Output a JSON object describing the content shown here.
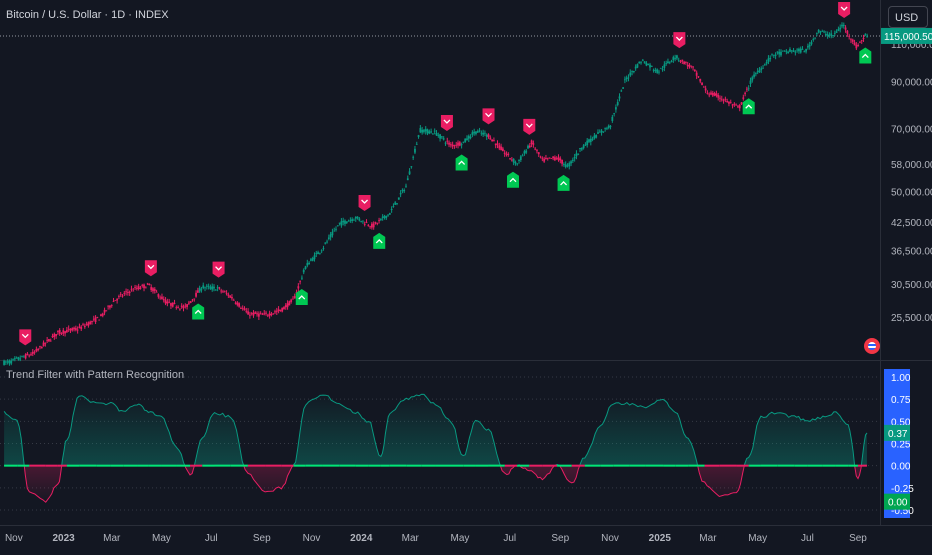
{
  "header": {
    "symbol_title": "Bitcoin / U.S. Dollar · 1D · INDEX",
    "currency_button": "USD",
    "current_price": "115,000.50"
  },
  "indicator": {
    "title": "Trend Filter with Pattern Recognition",
    "current_value": "0.37",
    "threshold_value": "0.00"
  },
  "colors": {
    "background": "#131722",
    "bull": "#089981",
    "bear": "#e91e63",
    "signal_up": "#00c853",
    "signal_down": "#e91e63",
    "threshold_line": "#00e676",
    "scale_badge": "#2962ff"
  },
  "icons": [
    "flag-icon"
  ],
  "chart_data": [
    {
      "type": "line",
      "title": "Bitcoin / U.S. Dollar · 1D · INDEX",
      "y_scale": "log",
      "price_axis_ticks": [
        "115,000.50",
        "110,000.00",
        "90,000.00",
        "70,000.00",
        "58,000.00",
        "50,000.00",
        "42,500.00",
        "36,500.00",
        "30,500.00",
        "25,500.00"
      ],
      "time_axis_ticks": [
        "Nov",
        "2023",
        "Mar",
        "May",
        "Jul",
        "Sep",
        "Nov",
        "2024",
        "Mar",
        "May",
        "Jul",
        "Sep",
        "Nov",
        "2025",
        "Mar",
        "May",
        "Jul",
        "Sep"
      ],
      "last_price": 115000.5,
      "series": [
        {
          "x": [
            "2022-10-25",
            "2022-11-25",
            "2022-12-25",
            "2023-01-20",
            "2023-02-15",
            "2023-03-05",
            "2023-03-25",
            "2023-04-15",
            "2023-05-08",
            "2023-05-30",
            "2023-06-20",
            "2023-07-10",
            "2023-07-25",
            "2023-08-15",
            "2023-09-05",
            "2023-09-25",
            "2023-10-10",
            "2023-10-25",
            "2023-11-15",
            "2023-12-05",
            "2023-12-25",
            "2024-01-15",
            "2024-02-05",
            "2024-02-25",
            "2024-03-13",
            "2024-04-01",
            "2024-04-20",
            "2024-05-05",
            "2024-05-20",
            "2024-06-05",
            "2024-06-25",
            "2024-07-10",
            "2024-07-28",
            "2024-08-10",
            "2024-08-28",
            "2024-09-10",
            "2024-09-28",
            "2024-10-15",
            "2024-11-01",
            "2024-11-20",
            "2024-12-10",
            "2024-12-30",
            "2025-01-20",
            "2025-02-10",
            "2025-02-28",
            "2025-03-15",
            "2025-04-08",
            "2025-04-25",
            "2025-05-20",
            "2025-06-10",
            "2025-06-30",
            "2025-07-14",
            "2025-08-01",
            "2025-08-14",
            "2025-08-30",
            "2025-09-10"
          ],
          "y": [
            20000,
            21000,
            23500,
            24000,
            25500,
            28000,
            29500,
            30300,
            27500,
            26800,
            30000,
            29700,
            28500,
            26000,
            25800,
            26500,
            28000,
            33500,
            37000,
            42000,
            43500,
            41500,
            44500,
            51500,
            69500,
            68500,
            64000,
            65000,
            69000,
            67500,
            61500,
            58000,
            65000,
            59000,
            60000,
            57000,
            63500,
            67500,
            71000,
            91000,
            101000,
            95000,
            103000,
            97000,
            85000,
            83000,
            78000,
            92000,
            104000,
            106000,
            106500,
            118000,
            115000,
            122000,
            108500,
            115000
          ]
        }
      ],
      "signals": [
        {
          "type": "sell",
          "date": "2022-11-15"
        },
        {
          "type": "sell",
          "date": "2023-04-18"
        },
        {
          "type": "buy",
          "date": "2023-06-15"
        },
        {
          "type": "sell",
          "date": "2023-07-10"
        },
        {
          "type": "buy",
          "date": "2023-10-20"
        },
        {
          "type": "sell",
          "date": "2024-01-05"
        },
        {
          "type": "buy",
          "date": "2024-01-23"
        },
        {
          "type": "sell",
          "date": "2024-04-15"
        },
        {
          "type": "buy",
          "date": "2024-05-03"
        },
        {
          "type": "sell",
          "date": "2024-06-05"
        },
        {
          "type": "buy",
          "date": "2024-07-05"
        },
        {
          "type": "sell",
          "date": "2024-07-25"
        },
        {
          "type": "buy",
          "date": "2024-09-05"
        },
        {
          "type": "sell",
          "date": "2025-01-25"
        },
        {
          "type": "buy",
          "date": "2025-04-20"
        },
        {
          "type": "sell",
          "date": "2025-08-15"
        },
        {
          "type": "buy",
          "date": "2025-09-10"
        }
      ]
    },
    {
      "type": "area",
      "title": "Trend Filter with Pattern Recognition",
      "ylim": [
        -0.6,
        1.05
      ],
      "y_axis_ticks": [
        "1.00",
        "0.75",
        "0.50",
        "0.25",
        "0.00",
        "-0.25",
        "-0.50"
      ],
      "threshold": 0.0,
      "last_value": 0.37,
      "series": [
        {
          "x": [
            "2022-10-20",
            "2022-11-05",
            "2022-11-20",
            "2022-12-10",
            "2022-12-25",
            "2023-01-05",
            "2023-01-20",
            "2023-02-10",
            "2023-02-28",
            "2023-03-15",
            "2023-04-01",
            "2023-04-15",
            "2023-05-01",
            "2023-05-20",
            "2023-06-05",
            "2023-06-20",
            "2023-07-05",
            "2023-07-25",
            "2023-08-15",
            "2023-09-05",
            "2023-09-25",
            "2023-10-10",
            "2023-10-25",
            "2023-11-15",
            "2023-12-05",
            "2023-12-25",
            "2024-01-10",
            "2024-01-25",
            "2024-02-05",
            "2024-02-25",
            "2024-03-15",
            "2024-04-01",
            "2024-04-20",
            "2024-05-05",
            "2024-05-20",
            "2024-06-05",
            "2024-06-25",
            "2024-07-10",
            "2024-07-25",
            "2024-08-10",
            "2024-08-28",
            "2024-09-15",
            "2024-10-01",
            "2024-10-20",
            "2024-11-05",
            "2024-11-25",
            "2024-12-15",
            "2025-01-05",
            "2025-01-20",
            "2025-02-05",
            "2025-02-25",
            "2025-03-15",
            "2025-04-05",
            "2025-04-20",
            "2025-05-05",
            "2025-05-25",
            "2025-06-15",
            "2025-07-01",
            "2025-07-20",
            "2025-08-05",
            "2025-08-20",
            "2025-09-01",
            "2025-09-12"
          ],
          "y": [
            0.6,
            0.5,
            -0.3,
            -0.4,
            -0.2,
            0.3,
            0.8,
            0.7,
            0.7,
            0.6,
            0.7,
            0.6,
            0.55,
            0.2,
            -0.1,
            0.3,
            0.6,
            0.55,
            -0.1,
            -0.3,
            -0.25,
            0.0,
            0.7,
            0.8,
            0.7,
            0.6,
            0.5,
            0.1,
            0.6,
            0.75,
            0.8,
            0.7,
            0.5,
            0.1,
            0.5,
            0.4,
            -0.1,
            0.0,
            -0.05,
            -0.15,
            0.0,
            -0.2,
            0.1,
            0.45,
            0.7,
            0.7,
            0.65,
            0.75,
            0.6,
            0.3,
            -0.2,
            -0.35,
            -0.3,
            0.1,
            0.55,
            0.6,
            0.55,
            0.5,
            0.55,
            0.6,
            0.45,
            -0.15,
            0.37
          ]
        }
      ]
    }
  ]
}
